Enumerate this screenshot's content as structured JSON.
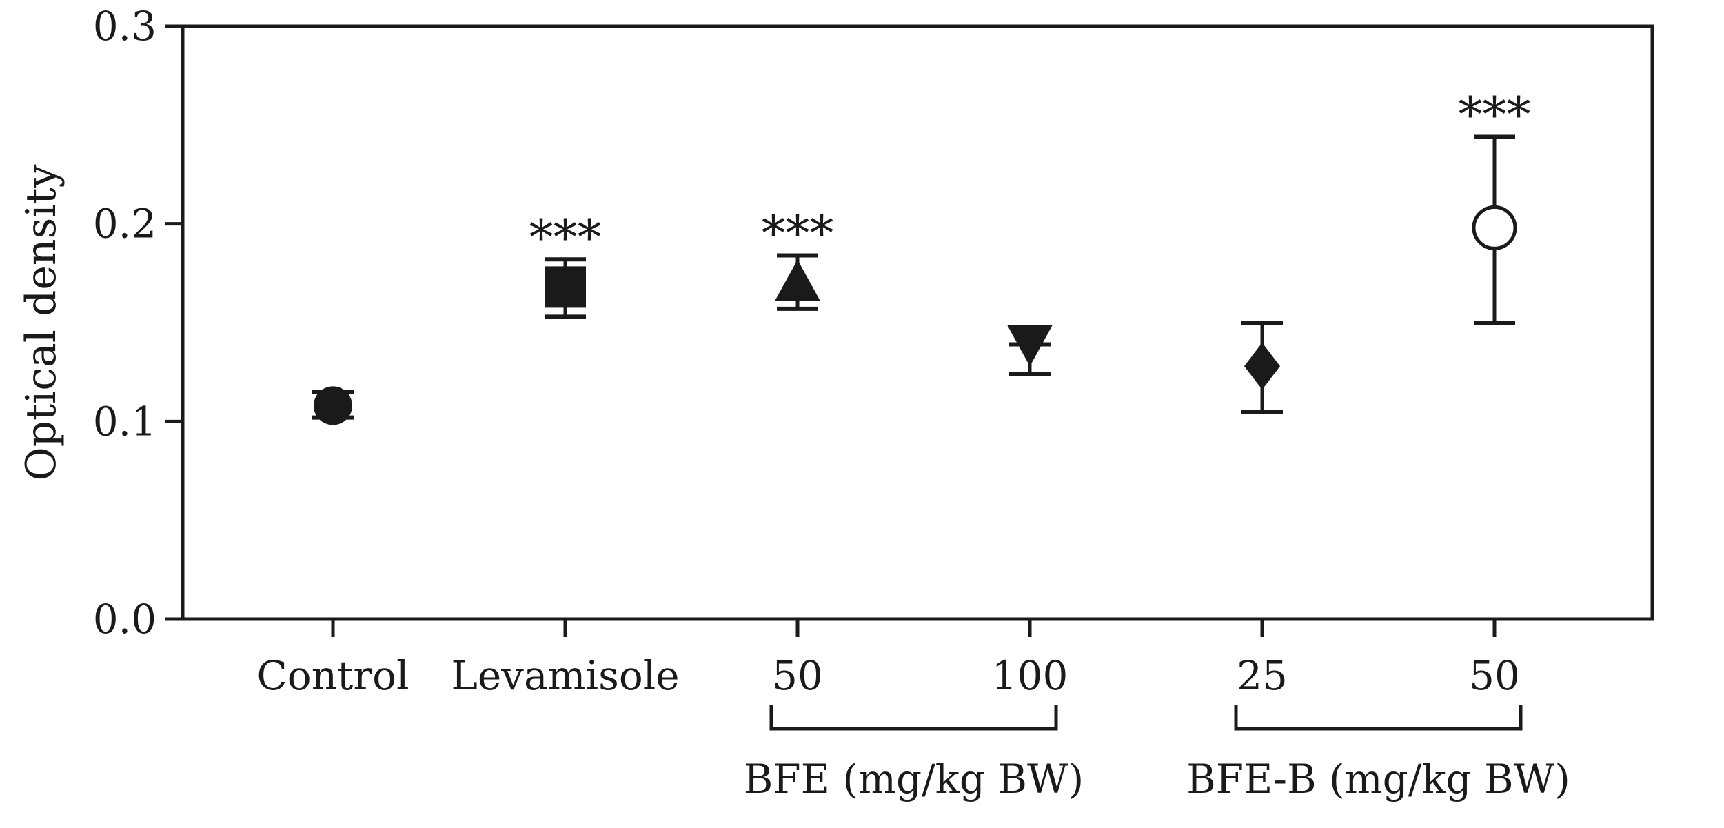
{
  "chart_data": {
    "type": "scatter",
    "title": "",
    "xlabel": "",
    "ylabel": "Optical density",
    "ylim": [
      0.0,
      0.3
    ],
    "yticks": [
      "0.0",
      "0.1",
      "0.2",
      "0.3"
    ],
    "grid": false,
    "categories": [
      "Control",
      "Levamisole",
      "50",
      "100",
      "25",
      "50"
    ],
    "points": [
      {
        "category": "Control",
        "mean": 0.108,
        "err_low": 0.102,
        "err_high": 0.115,
        "marker": "filled-circle",
        "sig": ""
      },
      {
        "category": "Levamisole",
        "mean": 0.168,
        "err_low": 0.153,
        "err_high": 0.182,
        "marker": "filled-square",
        "sig": "***"
      },
      {
        "category": "50",
        "mean": 0.17,
        "err_low": 0.157,
        "err_high": 0.184,
        "marker": "filled-triangle-up",
        "sig": "***"
      },
      {
        "category": "100",
        "mean": 0.137,
        "err_low": 0.124,
        "err_high": 0.139,
        "marker": "filled-triangle-down",
        "sig": ""
      },
      {
        "category": "25",
        "mean": 0.128,
        "err_low": 0.105,
        "err_high": 0.15,
        "marker": "filled-diamond",
        "sig": ""
      },
      {
        "category": "50",
        "mean": 0.198,
        "err_low": 0.15,
        "err_high": 0.244,
        "marker": "open-circle",
        "sig": "***"
      }
    ],
    "groups": [
      {
        "label": "BFE (mg/kg BW)",
        "from_index": 2,
        "to_index": 3
      },
      {
        "label": "BFE-B (mg/kg BW)",
        "from_index": 4,
        "to_index": 5
      }
    ],
    "colors": {
      "ink": "#1a1a1a",
      "background": "#ffffff"
    }
  }
}
